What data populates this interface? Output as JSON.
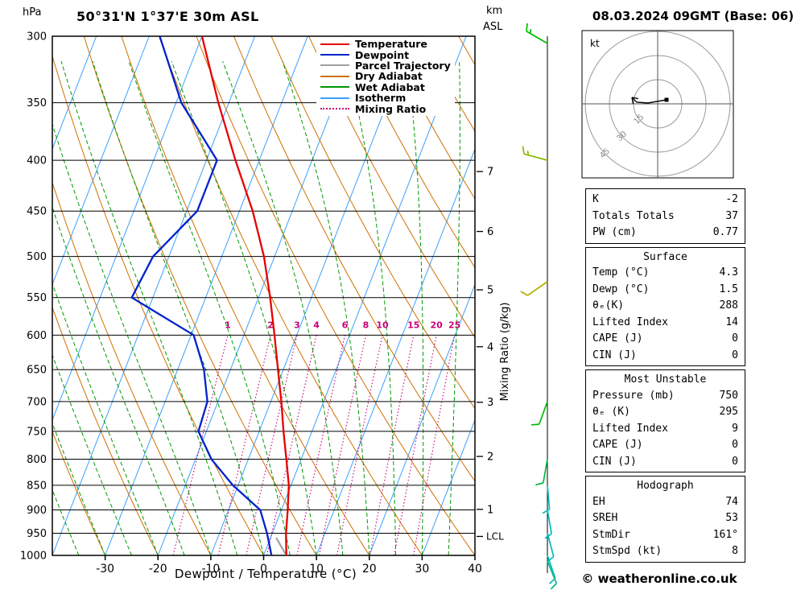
{
  "header": {
    "pressure_unit": "hPa",
    "title": "50°31'N 1°37'E 30m ASL",
    "altitude_unit": "km",
    "altitude_ref": "ASL",
    "datetime": "08.03.2024 09GMT (Base: 06)"
  },
  "axes": {
    "pressure_ticks": [
      300,
      350,
      400,
      450,
      500,
      550,
      600,
      650,
      700,
      750,
      800,
      850,
      900,
      950,
      1000
    ],
    "temp_ticks": [
      -30,
      -20,
      -10,
      0,
      10,
      20,
      30,
      40
    ],
    "xlabel": "Dewpoint / Temperature (°C)",
    "right_label": "Mixing Ratio (g/kg)",
    "km_ticks": [
      1,
      2,
      3,
      4,
      5,
      6,
      7
    ],
    "lcl_label": "LCL"
  },
  "legend": [
    {
      "label": "Temperature",
      "color": "#e60000",
      "style": "solid"
    },
    {
      "label": "Dewpoint",
      "color": "#0022cc",
      "style": "solid"
    },
    {
      "label": "Parcel Trajectory",
      "color": "#a0a0a0",
      "style": "solid"
    },
    {
      "label": "Dry Adiabat",
      "color": "#d07000",
      "style": "solid"
    },
    {
      "label": "Wet Adiabat",
      "color": "#009900",
      "style": "solid"
    },
    {
      "label": "Isotherm",
      "color": "#3aa0ff",
      "style": "solid"
    },
    {
      "label": "Mixing Ratio",
      "color": "#c80078",
      "style": "dotted"
    }
  ],
  "chart_data": {
    "type": "skewt_log_p_sounding",
    "pressure_hpa": [
      1000,
      950,
      900,
      850,
      800,
      750,
      700,
      650,
      600,
      550,
      500,
      450,
      400,
      350,
      300
    ],
    "temperature_c": [
      4.3,
      2.6,
      1.2,
      -0.4,
      -2.8,
      -5.4,
      -8.0,
      -11.0,
      -14.2,
      -17.8,
      -22.0,
      -27.5,
      -34.5,
      -42.0,
      -50.0
    ],
    "dewpoint_c": [
      1.5,
      -1.0,
      -4.0,
      -11.0,
      -17.0,
      -21.5,
      -22.0,
      -25.0,
      -29.5,
      -44.0,
      -43.0,
      -38.0,
      -38.0,
      -49.0,
      -58.0
    ],
    "x_range_c": [
      -40,
      40
    ],
    "p_range_hpa": [
      300,
      1000
    ],
    "skew": 0.39,
    "isotherm_step_c": 10,
    "dry_adiabat_step_c": 10,
    "wet_adiabat_step_c": 5,
    "mixing_ratio_lines_gkg": [
      1,
      2,
      3,
      4,
      6,
      8,
      10,
      15,
      20,
      25
    ],
    "surface": {
      "pressure_hpa": 1000,
      "temp_c": 4.3,
      "dewp_c": 1.5
    },
    "winds": [
      {
        "p": 305,
        "dir": 300,
        "spd": 15,
        "color": "#00bb00"
      },
      {
        "p": 400,
        "dir": 285,
        "spd": 15,
        "color": "#88bb00"
      },
      {
        "p": 530,
        "dir": 235,
        "spd": 10,
        "color": "#b0b000"
      },
      {
        "p": 700,
        "dir": 200,
        "spd": 10,
        "color": "#00bb00"
      },
      {
        "p": 800,
        "dir": 190,
        "spd": 10,
        "color": "#00bb44"
      },
      {
        "p": 850,
        "dir": 175,
        "spd": 10,
        "color": "#00bbbb"
      },
      {
        "p": 900,
        "dir": 170,
        "spd": 10,
        "color": "#00bbbb"
      },
      {
        "p": 950,
        "dir": 165,
        "spd": 10,
        "color": "#00bbbb"
      },
      {
        "p": 1000,
        "dir": 161,
        "spd": 8,
        "color": "#00bbbb"
      },
      {
        "p": 1013,
        "dir": 158,
        "spd": 8,
        "color": "#00bb88"
      }
    ]
  },
  "hodograph": {
    "unit": "kt",
    "rings_kt": [
      15,
      30,
      45
    ],
    "trace_kt": [
      [
        5.5,
        2.5
      ],
      [
        -6,
        0.5
      ],
      [
        -13,
        1
      ],
      [
        -16,
        4
      ]
    ],
    "marker_kt": [
      5.5,
      2.5
    ]
  },
  "table": {
    "indices": {
      "rows": [
        [
          "K",
          "-2"
        ],
        [
          "Totals Totals",
          "37"
        ],
        [
          "PW (cm)",
          "0.77"
        ]
      ]
    },
    "surface": {
      "title": "Surface",
      "rows": [
        [
          "Temp (°C)",
          "4.3"
        ],
        [
          "Dewp (°C)",
          "1.5"
        ],
        [
          "θₑ(K)",
          "288"
        ],
        [
          "Lifted Index",
          "14"
        ],
        [
          "CAPE (J)",
          "0"
        ],
        [
          "CIN (J)",
          "0"
        ]
      ]
    },
    "most_unstable": {
      "title": "Most Unstable",
      "rows": [
        [
          "Pressure (mb)",
          "750"
        ],
        [
          "θₑ (K)",
          "295"
        ],
        [
          "Lifted Index",
          "9"
        ],
        [
          "CAPE (J)",
          "0"
        ],
        [
          "CIN (J)",
          "0"
        ]
      ]
    },
    "hodograph": {
      "title": "Hodograph",
      "rows": [
        [
          "EH",
          "74"
        ],
        [
          "SREH",
          "53"
        ],
        [
          "StmDir",
          "161°"
        ],
        [
          "StmSpd (kt)",
          "8"
        ]
      ]
    }
  },
  "footer": {
    "copyright": "© weatheronline.co.uk"
  }
}
